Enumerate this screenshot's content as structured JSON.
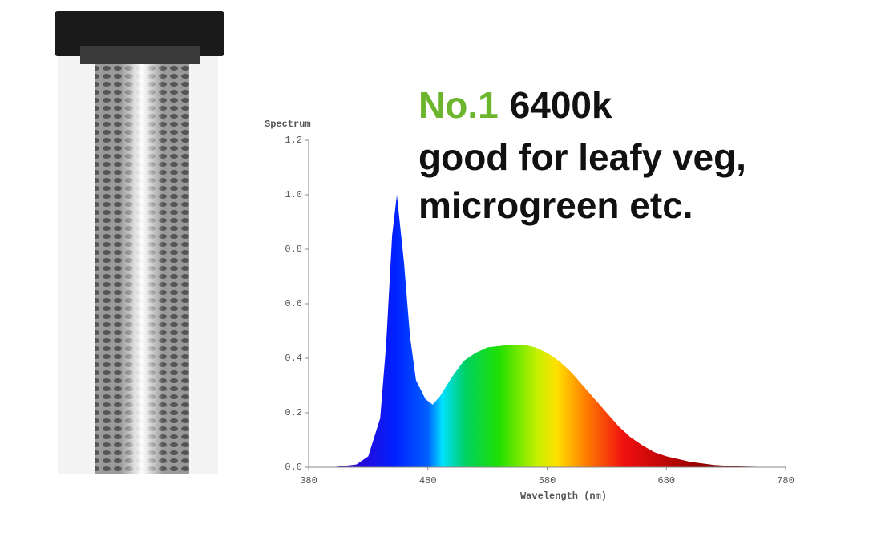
{
  "chart_data": {
    "type": "area",
    "annotations": [
      "No.1",
      "6400k",
      "good for leafy veg,",
      "microgreen etc."
    ],
    "y_label": "Spectrum",
    "x_label": "Wavelength (nm)",
    "x": [
      380,
      400,
      420,
      430,
      440,
      445,
      450,
      454,
      460,
      465,
      470,
      478,
      484,
      490,
      500,
      510,
      520,
      530,
      540,
      550,
      560,
      570,
      580,
      590,
      600,
      610,
      620,
      630,
      640,
      650,
      660,
      670,
      680,
      700,
      720,
      740,
      760,
      780
    ],
    "values": [
      0,
      0,
      0.01,
      0.04,
      0.18,
      0.45,
      0.85,
      1.0,
      0.75,
      0.48,
      0.32,
      0.25,
      0.23,
      0.26,
      0.33,
      0.39,
      0.42,
      0.44,
      0.445,
      0.45,
      0.45,
      0.44,
      0.42,
      0.39,
      0.35,
      0.3,
      0.25,
      0.2,
      0.15,
      0.11,
      0.08,
      0.055,
      0.04,
      0.02,
      0.008,
      0.003,
      0.001,
      0
    ],
    "xlim": [
      380,
      780
    ],
    "xticks": [
      380,
      480,
      580,
      680,
      780
    ],
    "ylim": [
      0,
      1.2
    ],
    "yticks": [
      {
        "value": 0,
        "label": "0.0"
      },
      0.2,
      0.4,
      0.6,
      0.8,
      {
        "value": 1,
        "label": "1.0"
      },
      1.2
    ]
  }
}
